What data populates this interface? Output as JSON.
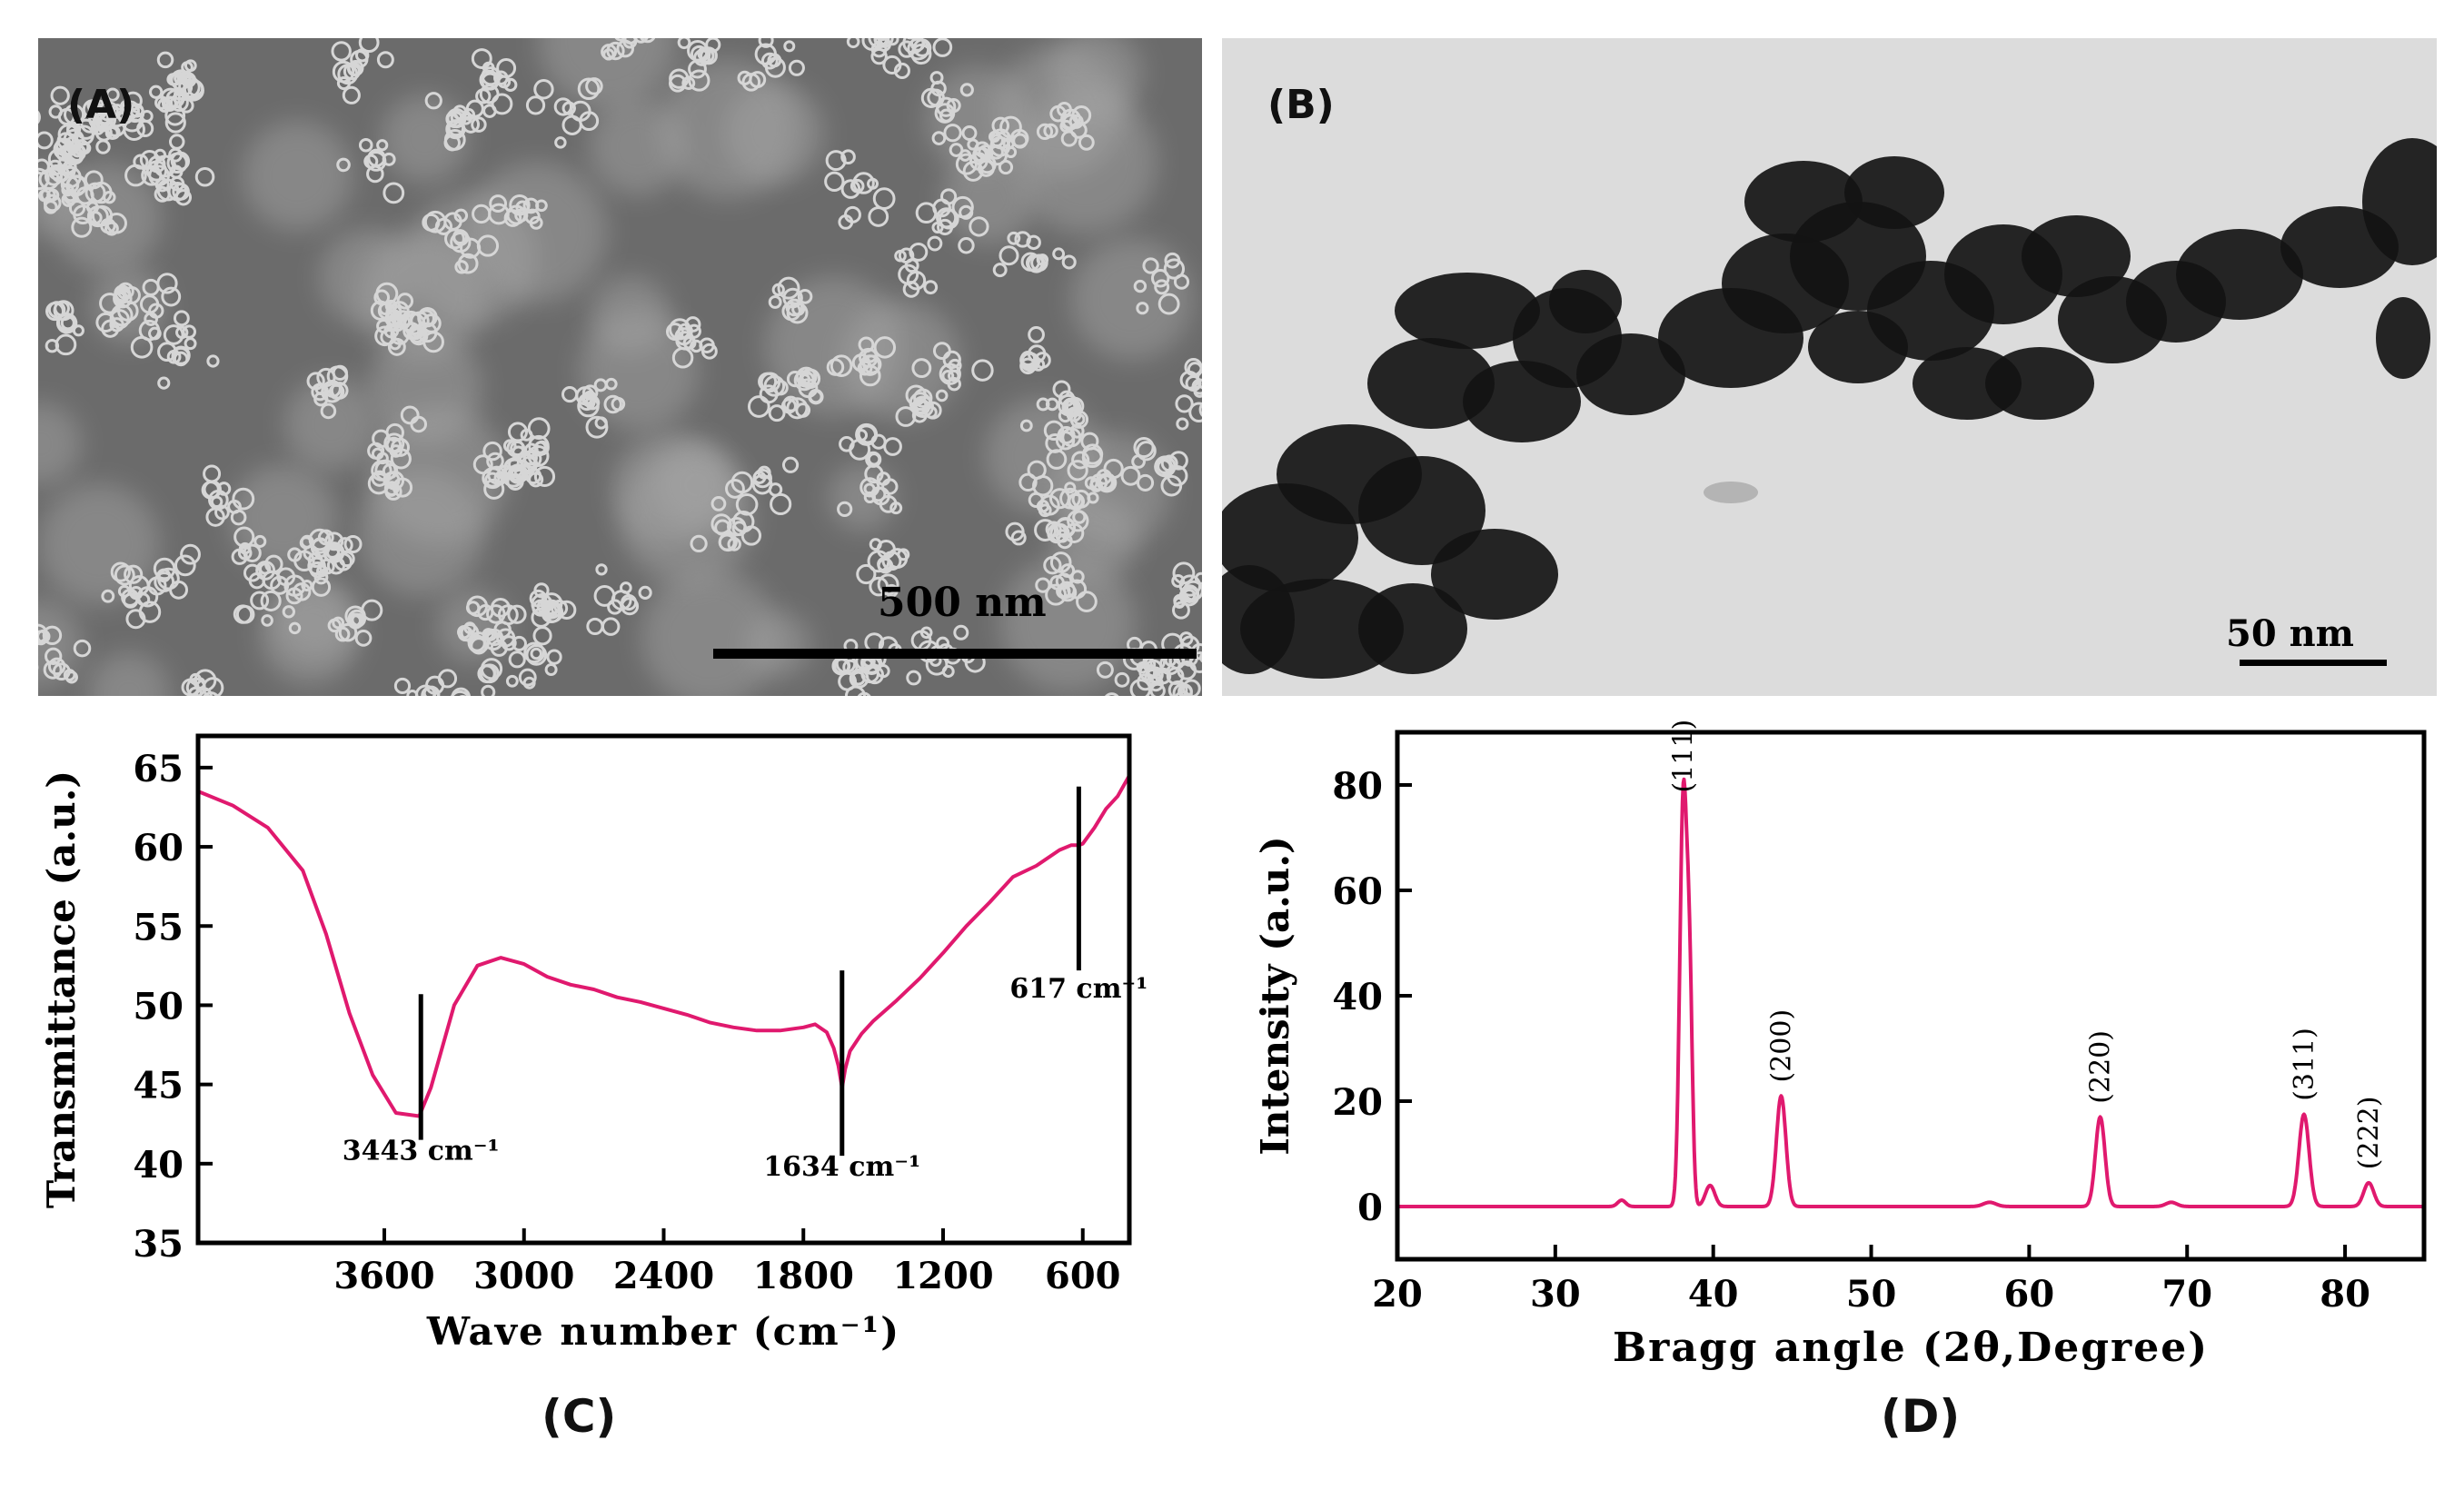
{
  "panels": {
    "a": {
      "label": "(A)",
      "scale_text": "500 nm"
    },
    "b": {
      "label": "(B)",
      "scale_text": "50 nm"
    },
    "c": {
      "label": "(C)"
    },
    "d": {
      "label": "(D)"
    }
  },
  "colors": {
    "line": "#e0196e",
    "frame": "#000000"
  },
  "chart_data": [
    {
      "id": "C",
      "type": "line",
      "xlabel": "Wave number (cm⁻¹)",
      "ylabel": "Transmittance (a.u.)",
      "xlim": [
        4400,
        400
      ],
      "ylim": [
        35,
        67
      ],
      "x_ticks": [
        3600,
        3000,
        2400,
        1800,
        1200,
        600
      ],
      "y_ticks": [
        35,
        40,
        45,
        50,
        55,
        60,
        65
      ],
      "x_reversed": true,
      "x": [
        4400,
        4250,
        4100,
        3950,
        3850,
        3750,
        3650,
        3550,
        3450,
        3400,
        3300,
        3200,
        3100,
        3000,
        2900,
        2800,
        2700,
        2600,
        2500,
        2400,
        2300,
        2200,
        2100,
        2000,
        1900,
        1800,
        1750,
        1700,
        1670,
        1650,
        1634,
        1620,
        1600,
        1550,
        1500,
        1400,
        1300,
        1200,
        1100,
        1000,
        900,
        800,
        700,
        650,
        617,
        600,
        550,
        500,
        450,
        400
      ],
      "y": [
        63.5,
        62.6,
        61.2,
        58.5,
        54.5,
        49.5,
        45.6,
        43.2,
        43.0,
        44.8,
        50.0,
        52.5,
        53.0,
        52.6,
        51.8,
        51.3,
        51.0,
        50.5,
        50.2,
        49.8,
        49.4,
        48.9,
        48.6,
        48.4,
        48.4,
        48.6,
        48.8,
        48.3,
        47.3,
        46.2,
        44.8,
        46.0,
        47.1,
        48.2,
        49.0,
        50.3,
        51.7,
        53.3,
        55.0,
        56.5,
        58.1,
        58.8,
        59.8,
        60.1,
        60.1,
        60.2,
        61.2,
        62.4,
        63.2,
        64.5
      ],
      "annotations": [
        {
          "text": "3443 cm⁻¹",
          "x": 3443,
          "line_y": [
            41.5,
            50.7
          ]
        },
        {
          "text": "1634 cm⁻¹",
          "x": 1634,
          "line_y": [
            40.5,
            52.2
          ]
        },
        {
          "text": "617 cm⁻¹",
          "x": 617,
          "line_y": [
            52.2,
            63.8
          ]
        }
      ]
    },
    {
      "id": "D",
      "type": "line",
      "xlabel": "Bragg angle (2θ,Degree)",
      "ylabel": "Intensity (a.u.)",
      "xlim": [
        20,
        85
      ],
      "ylim": [
        -10,
        90
      ],
      "x_ticks": [
        20,
        30,
        40,
        50,
        60,
        70,
        80
      ],
      "y_ticks": [
        0,
        20,
        40,
        60,
        80
      ],
      "peaks": [
        {
          "center": 34.2,
          "height": 1.2,
          "width": 0.25
        },
        {
          "center": 38.1,
          "height": 77.0,
          "width": 0.22
        },
        {
          "center": 38.5,
          "height": 40.0,
          "width": 0.18
        },
        {
          "center": 39.8,
          "height": 4.0,
          "width": 0.3
        },
        {
          "center": 44.3,
          "height": 21.0,
          "width": 0.3
        },
        {
          "center": 57.5,
          "height": 0.8,
          "width": 0.4
        },
        {
          "center": 64.5,
          "height": 17.0,
          "width": 0.3
        },
        {
          "center": 69.0,
          "height": 0.8,
          "width": 0.35
        },
        {
          "center": 77.4,
          "height": 17.5,
          "width": 0.32
        },
        {
          "center": 81.5,
          "height": 4.5,
          "width": 0.32
        }
      ],
      "annotations": [
        {
          "text": "(111)",
          "x": 38.1,
          "y": 77.5
        },
        {
          "text": "(200)",
          "x": 44.3,
          "y": 22.5
        },
        {
          "text": "(220)",
          "x": 64.5,
          "y": 18.5
        },
        {
          "text": "(311)",
          "x": 77.4,
          "y": 19.0
        },
        {
          "text": "(222)",
          "x": 81.5,
          "y": 6.0
        }
      ]
    }
  ]
}
